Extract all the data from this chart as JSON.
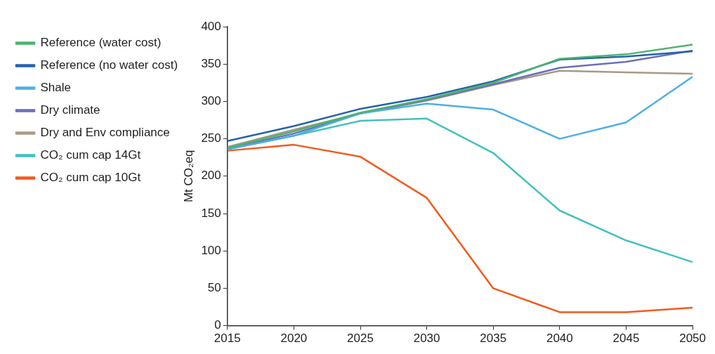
{
  "chart_data": {
    "type": "line",
    "ylabel": "Mt CO₂eq",
    "x": [
      2015,
      2020,
      2025,
      2030,
      2035,
      2040,
      2045,
      2050
    ],
    "xlim": [
      2015,
      2050
    ],
    "xticks": [
      2015,
      2020,
      2025,
      2030,
      2035,
      2040,
      2045,
      2050
    ],
    "ylim": [
      0,
      400
    ],
    "yticks": [
      0,
      50,
      100,
      150,
      200,
      250,
      300,
      350,
      400
    ],
    "grid": false,
    "legend": "top left",
    "marker": "none",
    "line_style": "solid",
    "series": [
      {
        "name": "Reference (water cost)",
        "color": "#4db36e",
        "values": [
          238,
          260,
          285,
          303,
          325,
          357,
          363,
          376
        ]
      },
      {
        "name": "Reference (no water cost)",
        "color": "#2563ad",
        "values": [
          247,
          267,
          290,
          306,
          327,
          356,
          360,
          367
        ]
      },
      {
        "name": "Shale",
        "color": "#4eaee4",
        "values": [
          236,
          254,
          284,
          297,
          289,
          250,
          272,
          333
        ]
      },
      {
        "name": "Dry climate",
        "color": "#6b6fb8",
        "values": [
          237,
          257,
          284,
          302,
          323,
          345,
          353,
          368
        ]
      },
      {
        "name": "Dry and Env compliance",
        "color": "#a89a84",
        "values": [
          239,
          262,
          284,
          301,
          322,
          341,
          339,
          337
        ]
      },
      {
        "name": "CO₂ cum cap 14Gt",
        "color": "#45c0bf",
        "values": [
          236,
          254,
          274,
          277,
          231,
          154,
          114,
          85
        ]
      },
      {
        "name": "CO₂ cum cap 10Gt",
        "color": "#f25a1d",
        "values": [
          234,
          242,
          226,
          171,
          50,
          18,
          18,
          24
        ]
      }
    ]
  }
}
